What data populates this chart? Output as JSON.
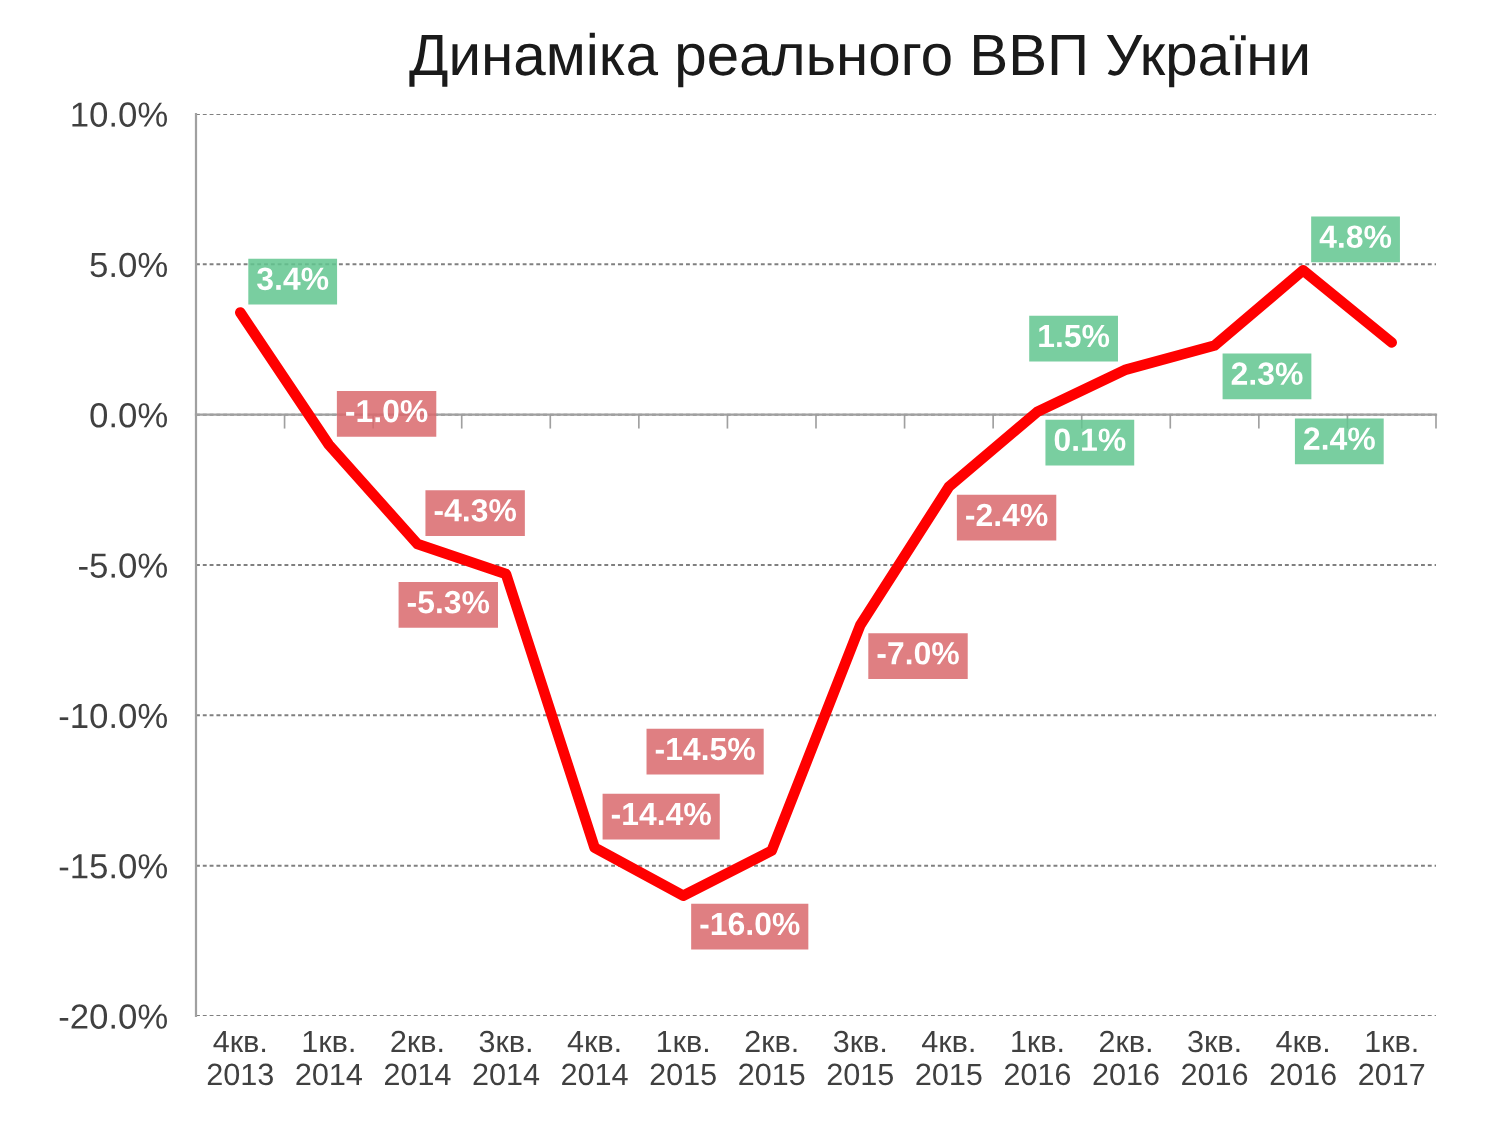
{
  "chart_data": {
    "type": "line",
    "title": "Динаміка реального ВВП України",
    "categories": [
      "4кв. 2013",
      "1кв. 2014",
      "2кв. 2014",
      "3кв. 2014",
      "4кв. 2014",
      "1кв. 2015",
      "2кв. 2015",
      "3кв. 2015",
      "4кв. 2015",
      "1кв. 2016",
      "2кв. 2016",
      "3кв. 2016",
      "4кв. 2016",
      "1кв. 2017"
    ],
    "series": [
      {
        "color": "#ff0000",
        "values": [
          3.4,
          -1.0,
          -4.3,
          -5.3,
          -14.4,
          -16.0,
          -14.5,
          -7.0,
          -2.4,
          0.1,
          1.5,
          2.3,
          4.8,
          2.4
        ],
        "value_labels": [
          "3.4%",
          "-1.0%",
          "-4.3%",
          "-5.3%",
          "-14.4%",
          "-16.0%",
          "-14.5%",
          "-7.0%",
          "-2.4%",
          "0.1%",
          "1.5%",
          "2.3%",
          "4.8%",
          "2.4%"
        ],
        "colors": [
          "#62c68f",
          "#d9686c",
          "#d9686c",
          "#d9686c",
          "#d9686c",
          "#d9686c",
          "#d9686c",
          "#d9686c",
          "#d9686c",
          "#62c68f",
          "#62c68f",
          "#62c68f",
          "#62c68f",
          "#62c68f"
        ]
      }
    ],
    "ylim": [
      -20,
      10
    ],
    "yticks": [
      {
        "value": -20,
        "label": "-20.0%"
      },
      {
        "value": -15,
        "label": "-15.0%"
      },
      {
        "value": -10,
        "label": "-10.0%"
      },
      {
        "value": -5,
        "label": "-5.0%"
      },
      {
        "value": 0,
        "label": "0.0%"
      },
      {
        "value": 5,
        "label": "5.0%"
      },
      {
        "value": 10,
        "label": "10.0%"
      }
    ],
    "grid": "y",
    "marker": "none",
    "line_style": "solid"
  }
}
